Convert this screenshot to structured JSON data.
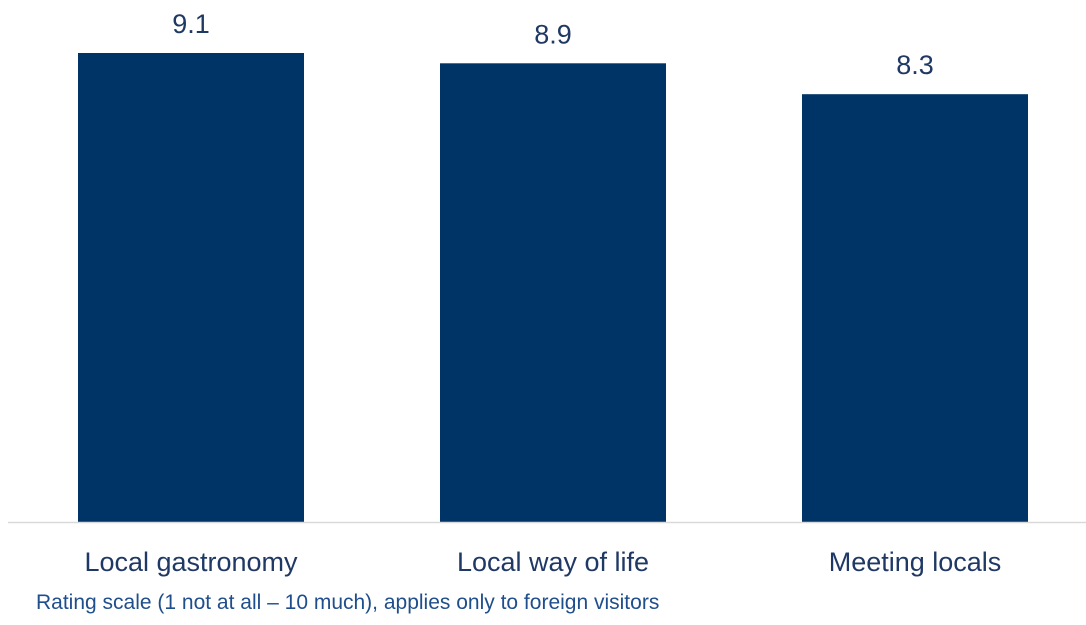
{
  "chart_data": {
    "type": "bar",
    "categories": [
      "Local gastronomy",
      "Local way of life",
      "Meeting locals"
    ],
    "values": [
      9.1,
      8.9,
      8.3
    ],
    "value_labels": [
      "9.1",
      "8.9",
      "8.3"
    ],
    "title": "",
    "xlabel": "",
    "ylabel": "",
    "ylim": [
      0,
      9.1
    ],
    "grid": false,
    "legend": "none",
    "bar_color": "#003366",
    "label_color": "#1f3864",
    "baseline_color": "#d9d9d9"
  },
  "note": {
    "text": "Rating scale (1 not at all – 10 much), applies only to foreign visitors",
    "color": "#1f4e8c"
  }
}
